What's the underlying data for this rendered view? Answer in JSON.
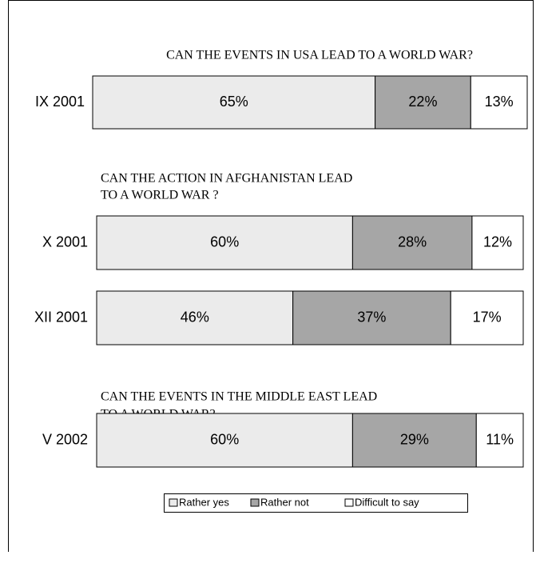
{
  "chart_data": {
    "type": "bar",
    "orientation": "horizontal",
    "stacked": true,
    "categories": [
      "IX 2001",
      "X 2001",
      "XII 2001",
      "V 2002"
    ],
    "xlim": [
      0,
      100
    ],
    "questions": [
      {
        "lines": [
          "CAN THE EVENTS IN USA LEAD TO A WORLD WAR?"
        ]
      },
      {
        "lines": [
          "CAN THE ACTION IN AFGHANISTAN LEAD",
          "TO A WORLD WAR ?"
        ]
      },
      {
        "lines": [
          "CAN THE EVENTS IN THE MIDDLE EAST LEAD",
          "TO A WORLD WAR?"
        ]
      }
    ],
    "series": [
      {
        "name": "Rather yes",
        "color": "#ebebeb",
        "values": [
          65,
          60,
          46,
          60
        ],
        "value_labels": [
          "65%",
          "60%",
          "46%",
          "60%"
        ]
      },
      {
        "name": "Rather not",
        "color": "#a6a6a6",
        "values": [
          22,
          28,
          37,
          29
        ],
        "value_labels": [
          "22%",
          "28%",
          "37%",
          "29%"
        ]
      },
      {
        "name": "Difficult to say",
        "color": "#ffffff",
        "values": [
          13,
          12,
          17,
          11
        ],
        "value_labels": [
          "13%",
          "12%",
          "17%",
          "11%"
        ]
      }
    ]
  }
}
